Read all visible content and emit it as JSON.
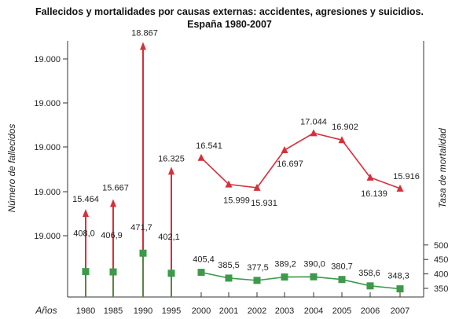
{
  "chart_data": {
    "type": "line",
    "title": "Fallecidos y mortalidades por causas externas: accidentes, agresiones y suicidios.",
    "subtitle": "España 1980-2007",
    "xlabel": "Años",
    "ylabel_left": "Número de fallecidos",
    "ylabel_right": "Tasa de mortalidad",
    "left_ticks": [
      "19.000",
      "19.000",
      "19.000",
      "19.000",
      "19.000"
    ],
    "right_ticks": [
      500,
      450,
      400,
      350
    ],
    "right_ylim": [
      330,
      510
    ],
    "categories": [
      "1980",
      "1985",
      "1990",
      "1995",
      "2000",
      "2001",
      "2002",
      "2003",
      "2004",
      "2005",
      "2006",
      "2007"
    ],
    "series": [
      {
        "values": [
          15464,
          15667,
          18867,
          16325,
          16541,
          15999,
          15931,
          16697,
          17044,
          16902,
          16139,
          15916
        ],
        "labels": [
          "15.464",
          "15.667",
          "18.867",
          "16.325",
          "16.541",
          "15.999",
          "15.931",
          "16.697",
          "17.044",
          "16.902",
          "16.139",
          "15.916"
        ],
        "color": "#d6303a",
        "style": "line-from-2000, arrows-for-earlier-years"
      },
      {
        "values": [
          408.0,
          406.9,
          471.7,
          402.1,
          405.4,
          385.5,
          377.5,
          389.2,
          390.0,
          380.7,
          358.6,
          348.3
        ],
        "labels": [
          "408,0",
          "406,9",
          "471,7",
          "402,1",
          "405,4",
          "385,5",
          "377,5",
          "389,2",
          "390,0",
          "380,7",
          "358,6",
          "348,3"
        ],
        "color": "#3d9a4a",
        "style": "line-from-2000, stems-for-earlier-years, square-markers"
      }
    ]
  }
}
